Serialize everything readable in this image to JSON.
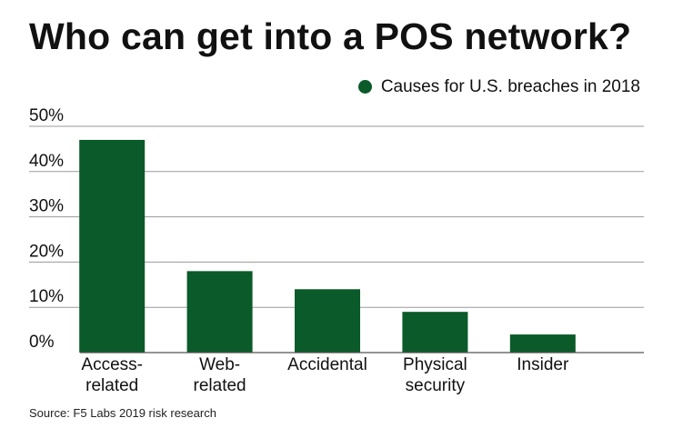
{
  "title": "Who can get into a POS network?",
  "source": "Source: F5 Labs 2019 risk research",
  "colors": {
    "bar": "#0b5a2a",
    "grid": "#9a9a9a",
    "axis": "#555555",
    "text": "#111111"
  },
  "chart_data": {
    "type": "bar",
    "title": "Who can get into a POS network?",
    "categories": [
      [
        "Access-",
        "related"
      ],
      [
        "Web-",
        "related"
      ],
      [
        "Accidental"
      ],
      [
        "Physical",
        "security"
      ],
      [
        "Insider"
      ]
    ],
    "series": [
      {
        "name": "Causes for U.S. breaches in 2018",
        "values": [
          47,
          18,
          14,
          9,
          4
        ]
      }
    ],
    "ylim": [
      0,
      50
    ],
    "yticks": [
      0,
      10,
      20,
      30,
      40,
      50
    ],
    "ytick_labels": [
      "0%",
      "10%",
      "20%",
      "30%",
      "40%",
      "50%"
    ],
    "grid": true,
    "legend_position": "top-right",
    "xlabel": "",
    "ylabel": ""
  }
}
